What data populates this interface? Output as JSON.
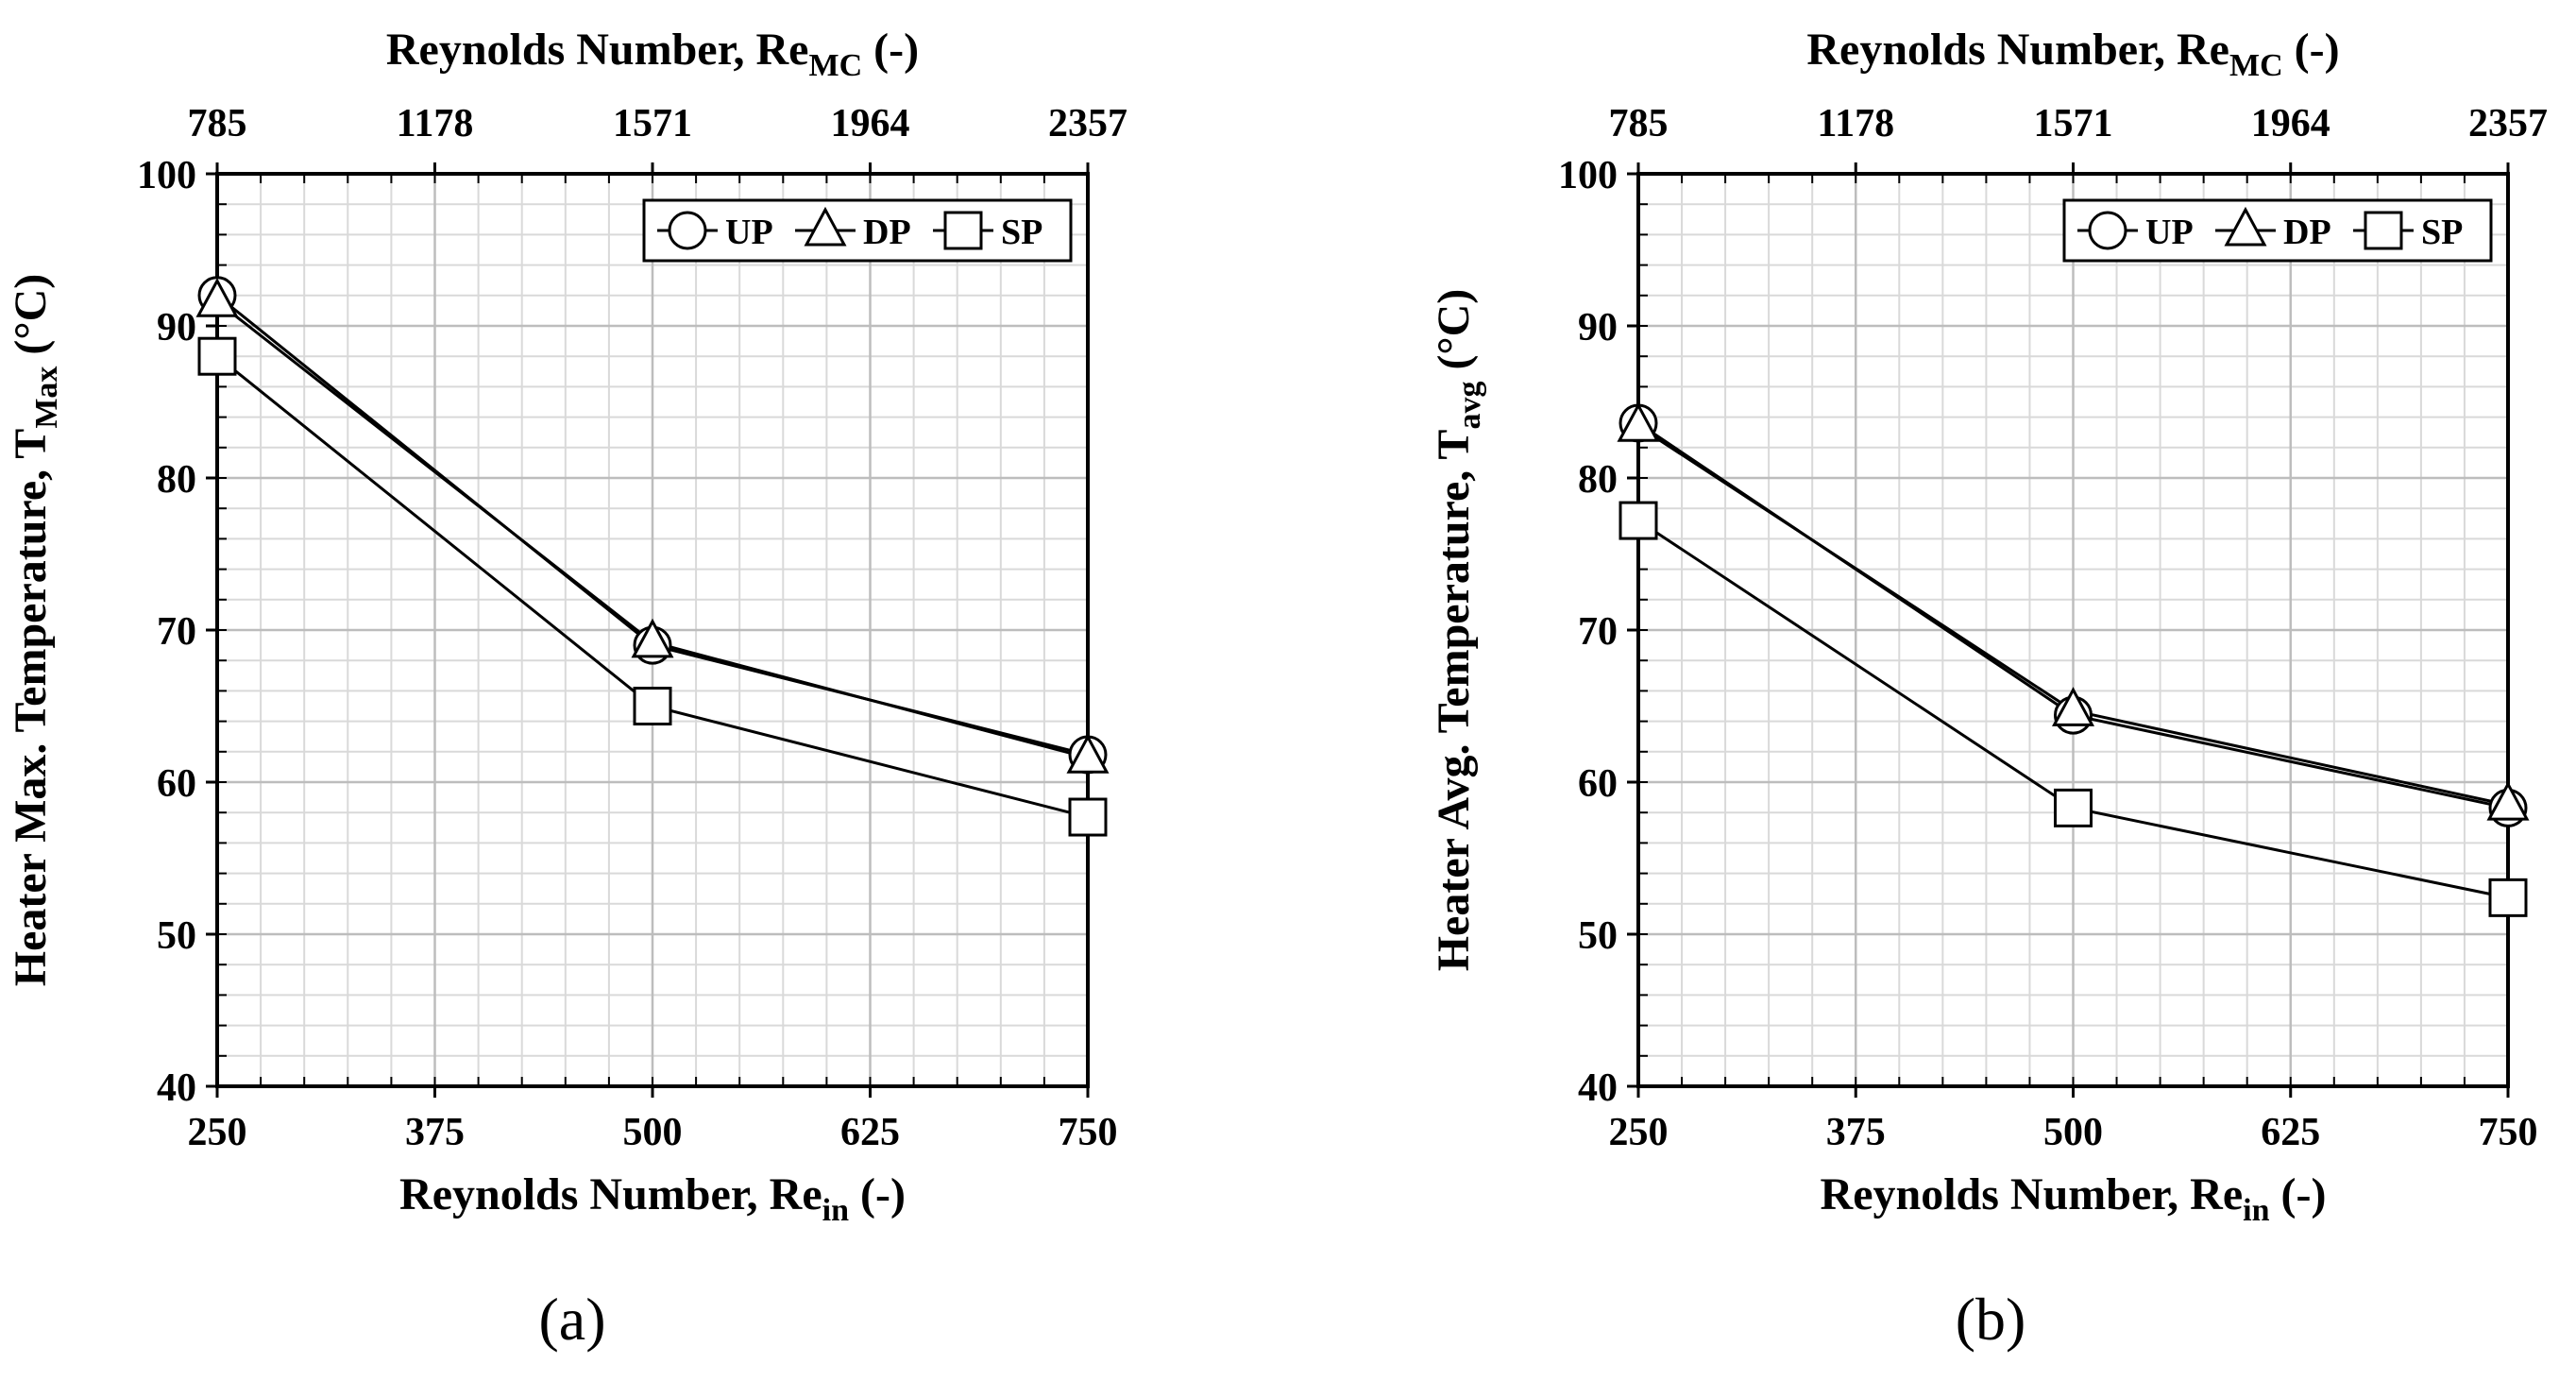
{
  "chart_data": [
    {
      "type": "line",
      "panel_label": "(a)",
      "x": [
        250,
        500,
        750
      ],
      "xticks": [
        "250",
        "375",
        "500",
        "625",
        "750"
      ],
      "xlim": [
        250,
        750
      ],
      "x2ticks": [
        "785",
        "1178",
        "1571",
        "1964",
        "2357"
      ],
      "xlabel": {
        "main": "Reynolds Number, Re",
        "sub": "in",
        "suffix": " (-)"
      },
      "x2label": {
        "main": "Reynolds Number, Re",
        "sub": "MC",
        "suffix": " (-)"
      },
      "ylabel": {
        "main": "Heater Max. Temperature, T",
        "sub": "Max",
        "suffix": " (°C)"
      },
      "ylim": [
        40,
        100
      ],
      "yticks": [
        "40",
        "50",
        "60",
        "70",
        "80",
        "90",
        "100"
      ],
      "grid": true,
      "legend_position": "top-right",
      "series": [
        {
          "name": "UP",
          "marker": "circle",
          "values": [
            92.0,
            69.0,
            61.8
          ]
        },
        {
          "name": "DP",
          "marker": "triangle",
          "values": [
            91.6,
            69.2,
            61.6
          ]
        },
        {
          "name": "SP",
          "marker": "square",
          "values": [
            88.0,
            65.0,
            57.7
          ]
        }
      ]
    },
    {
      "type": "line",
      "panel_label": "(b)",
      "x": [
        250,
        500,
        750
      ],
      "xticks": [
        "250",
        "375",
        "500",
        "625",
        "750"
      ],
      "xlim": [
        250,
        750
      ],
      "x2ticks": [
        "785",
        "1178",
        "1571",
        "1964",
        "2357"
      ],
      "xlabel": {
        "main": "Reynolds Number, Re",
        "sub": "in",
        "suffix": " (-)"
      },
      "x2label": {
        "main": "Reynolds Number, Re",
        "sub": "MC",
        "suffix": " (-)"
      },
      "ylabel": {
        "main": "Heater Avg. Temperature, T",
        "sub": "avg",
        "suffix": " (°C)"
      },
      "ylim": [
        40,
        100
      ],
      "yticks": [
        "40",
        "50",
        "60",
        "70",
        "80",
        "90",
        "100"
      ],
      "grid": true,
      "legend_position": "top-right",
      "series": [
        {
          "name": "UP",
          "marker": "circle",
          "values": [
            83.6,
            64.4,
            58.3
          ]
        },
        {
          "name": "DP",
          "marker": "triangle",
          "values": [
            83.4,
            64.7,
            58.5
          ]
        },
        {
          "name": "SP",
          "marker": "square",
          "values": [
            77.2,
            58.3,
            52.4
          ]
        }
      ]
    }
  ]
}
